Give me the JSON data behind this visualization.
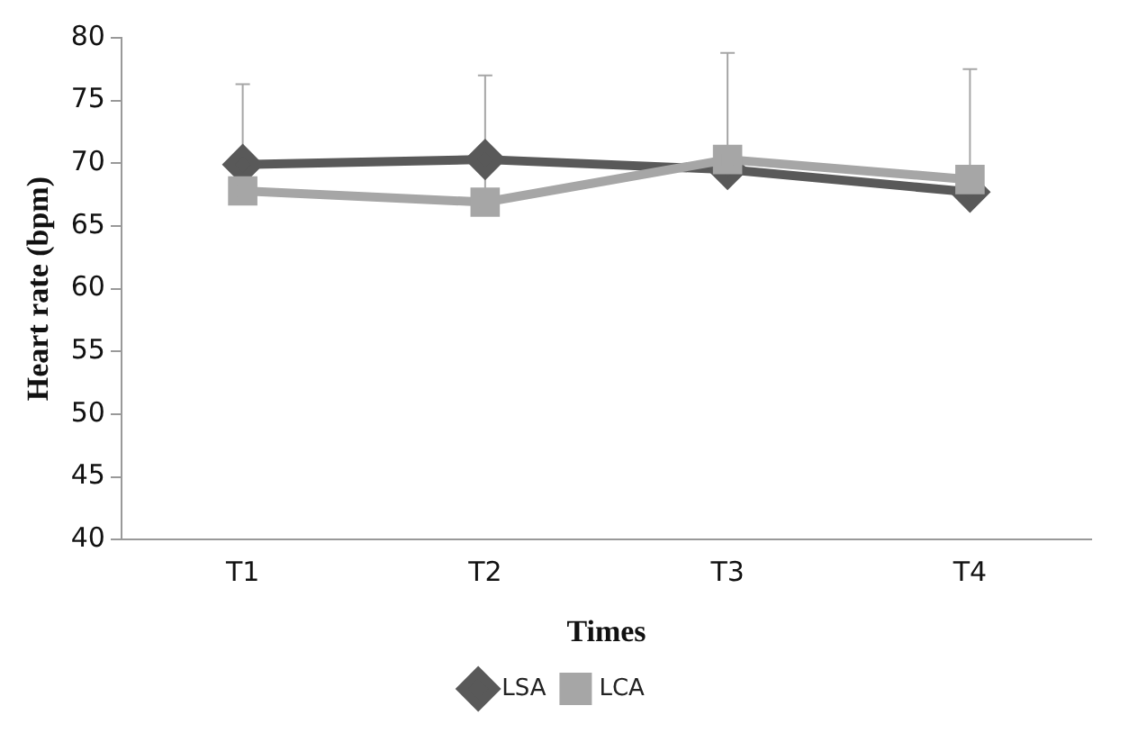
{
  "chart_data": {
    "type": "line",
    "xlabel": "Times",
    "ylabel": "Heart rate (bpm)",
    "categories": [
      "T1",
      "T2",
      "T3",
      "T4"
    ],
    "ylim": [
      40,
      80
    ],
    "yticks": [
      40,
      45,
      50,
      55,
      60,
      65,
      70,
      75,
      80
    ],
    "grid": false,
    "legend": "bottom",
    "line_style": "solid",
    "series": [
      {
        "name": "LSA",
        "color": "#595959",
        "marker": "diamond",
        "values": [
          69.9,
          70.3,
          69.5,
          67.7
        ]
      },
      {
        "name": "LCA",
        "color": "#a6a6a6",
        "marker": "square",
        "values": [
          67.8,
          66.9,
          70.3,
          68.7
        ],
        "errors": [
          [
            67.8,
            76.3
          ],
          [
            66.9,
            77.0
          ],
          [
            70.3,
            78.8
          ],
          [
            68.7,
            77.5
          ]
        ]
      }
    ]
  }
}
